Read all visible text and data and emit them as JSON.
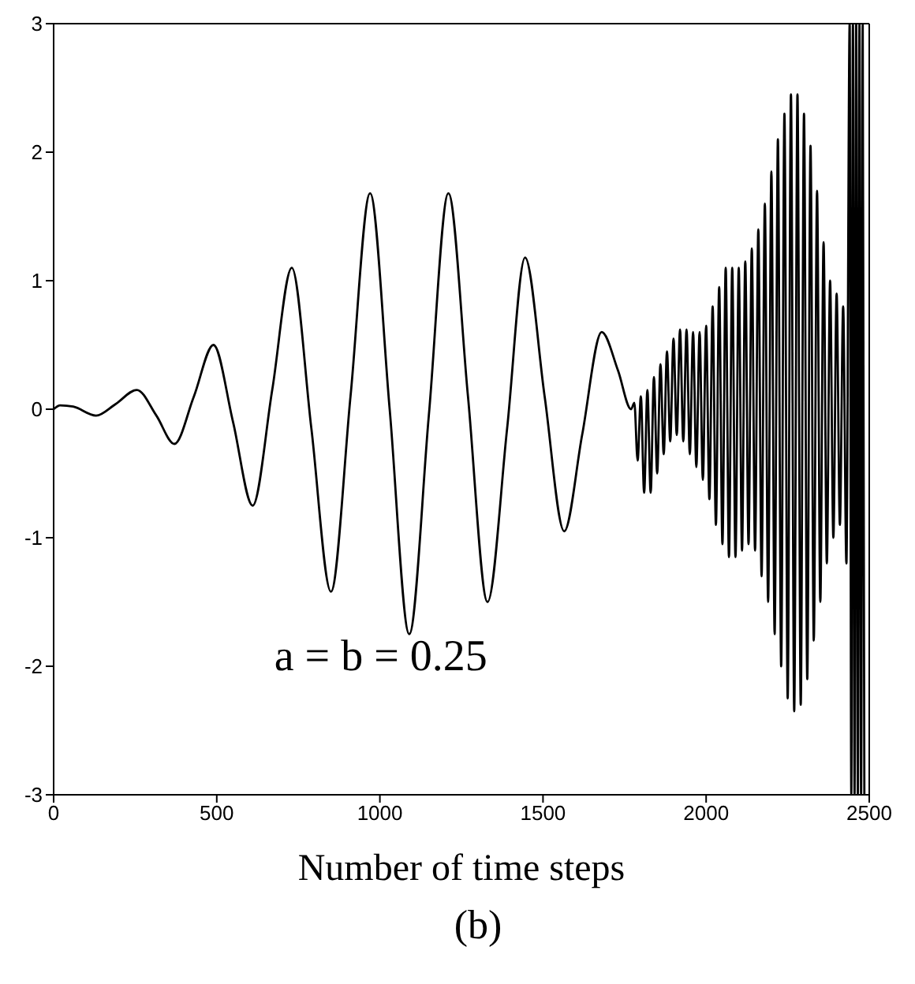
{
  "chart_data": {
    "type": "line",
    "xlabel": "Number of time steps",
    "annotations": [
      "a = b = 0.25",
      "(b)"
    ],
    "xlim": [
      0,
      2500
    ],
    "xticks": [
      0,
      500,
      1000,
      1500,
      2000,
      2500
    ],
    "ylim": [
      -3,
      3
    ],
    "yticks": [
      -3,
      -2,
      -1,
      0,
      1,
      2,
      3
    ],
    "marker": "none",
    "line_style": "solid",
    "series": [
      {
        "color": "#000000",
        "x": [
          0,
          20,
          60,
          130,
          190,
          255,
          315,
          370,
          430,
          490,
          550,
          610,
          670,
          730,
          790,
          850,
          910,
          970,
          1030,
          1090,
          1150,
          1210,
          1270,
          1330,
          1390,
          1445,
          1505,
          1565,
          1620,
          1680,
          1730,
          1770,
          1780,
          1790,
          1800,
          1810,
          1820,
          1830,
          1840,
          1850,
          1860,
          1870,
          1880,
          1890,
          1900,
          1910,
          1920,
          1930,
          1940,
          1950,
          1960,
          1970,
          1980,
          1990,
          2000,
          2010,
          2020,
          2030,
          2040,
          2050,
          2060,
          2070,
          2080,
          2090,
          2100,
          2110,
          2120,
          2130,
          2140,
          2150,
          2160,
          2170,
          2180,
          2190,
          2200,
          2210,
          2220,
          2230,
          2240,
          2250,
          2260,
          2270,
          2280,
          2290,
          2300,
          2310,
          2320,
          2330,
          2340,
          2350,
          2360,
          2370,
          2380,
          2390,
          2400,
          2410,
          2420,
          2430,
          2440,
          2445,
          2450,
          2455,
          2460,
          2465,
          2470,
          2475,
          2480,
          2485
        ],
        "values": [
          0,
          0.03,
          0.02,
          -0.05,
          0.04,
          0.15,
          -0.05,
          -0.27,
          0.1,
          0.5,
          -0.1,
          -0.75,
          0.15,
          1.1,
          -0.15,
          -1.42,
          0.1,
          1.68,
          0,
          -1.75,
          -0.05,
          1.68,
          0.1,
          -1.5,
          -0.15,
          1.18,
          0.1,
          -0.95,
          -0.2,
          0.6,
          0.3,
          0,
          0.05,
          -0.4,
          0.1,
          -0.65,
          0.15,
          -0.65,
          0.25,
          -0.5,
          0.35,
          -0.35,
          0.45,
          -0.25,
          0.55,
          -0.2,
          0.62,
          -0.25,
          0.62,
          -0.35,
          0.6,
          -0.45,
          0.6,
          -0.55,
          0.65,
          -0.7,
          0.8,
          -0.9,
          0.95,
          -1.05,
          1.1,
          -1.15,
          1.1,
          -1.15,
          1.1,
          -1.1,
          1.15,
          -1.05,
          1.25,
          -1.1,
          1.4,
          -1.3,
          1.6,
          -1.5,
          1.85,
          -1.75,
          2.1,
          -2,
          2.3,
          -2.25,
          2.45,
          -2.35,
          2.45,
          -2.3,
          2.3,
          -2.1,
          2.05,
          -1.8,
          1.7,
          -1.5,
          1.3,
          -1.2,
          1,
          -1,
          0.9,
          -0.9,
          0.8,
          -1.2,
          3,
          -3,
          3,
          -3,
          3,
          -3,
          3,
          -3,
          3,
          -3
        ]
      }
    ]
  }
}
